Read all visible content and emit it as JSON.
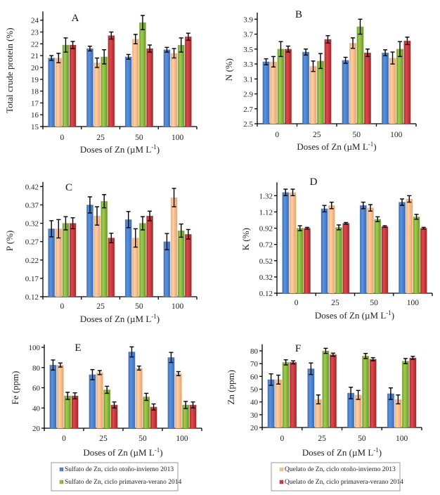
{
  "chart_data": [
    {
      "id": "A",
      "type": "bar",
      "title": "A",
      "ylabel": "Total crude protein (%)",
      "xlabel": "Doses of Zn (µM L⁻¹)",
      "categories": [
        "0",
        "25",
        "50",
        "100"
      ],
      "ylim": [
        15,
        24.5
      ],
      "yticks": [
        15,
        16,
        17,
        18,
        19,
        20,
        21,
        22,
        23,
        24
      ],
      "ytick_labels": [
        "15",
        "16",
        "17",
        "18",
        "19",
        "20",
        "21",
        "22",
        "23",
        "24"
      ],
      "series": [
        {
          "name": "Sulfato de Zn, ciclo otoño-invierno 2013",
          "values": [
            20.8,
            21.6,
            20.9,
            21.5
          ],
          "errors": [
            0.2,
            0.2,
            0.2,
            0.2
          ]
        },
        {
          "name": "Quelato de Zn, ciclo otoño-invierno 2013",
          "values": [
            20.8,
            20.4,
            22.4,
            21.2
          ],
          "errors": [
            0.4,
            0.4,
            0.4,
            0.4
          ]
        },
        {
          "name": "Sulfato de Zn, ciclo primavera-verano 2014",
          "values": [
            21.9,
            20.9,
            23.8,
            21.9
          ],
          "errors": [
            0.6,
            0.6,
            0.6,
            0.6
          ]
        },
        {
          "name": "Quelato de Zn, ciclo primavera-verano 2014",
          "values": [
            21.9,
            22.7,
            21.6,
            22.6
          ],
          "errors": [
            0.3,
            0.3,
            0.3,
            0.3
          ]
        }
      ]
    },
    {
      "id": "B",
      "type": "bar",
      "title": "B",
      "ylabel": "N (%)",
      "xlabel": "Doses of Zn (µM L⁻¹)",
      "categories": [
        "0",
        "25",
        "50",
        "100"
      ],
      "ylim": [
        2.5,
        3.95
      ],
      "yticks": [
        2.5,
        2.7,
        2.9,
        3.1,
        3.3,
        3.5,
        3.7,
        3.9
      ],
      "ytick_labels": [
        "2.5",
        "2.7",
        "2.9",
        "3.1",
        "3.3",
        "3.5",
        "3.7",
        "3.9"
      ],
      "series": [
        {
          "name": "Sulfato de Zn, ciclo otoño-invierno 2013",
          "values": [
            3.33,
            3.46,
            3.35,
            3.45
          ],
          "errors": [
            0.04,
            0.04,
            0.04,
            0.04
          ]
        },
        {
          "name": "Quelato de Zn, ciclo otoño-invierno 2013",
          "values": [
            3.33,
            3.27,
            3.58,
            3.38
          ],
          "errors": [
            0.07,
            0.07,
            0.07,
            0.08
          ]
        },
        {
          "name": "Sulfato de Zn, ciclo primavera-verano 2014",
          "values": [
            3.5,
            3.34,
            3.8,
            3.5
          ],
          "errors": [
            0.1,
            0.1,
            0.1,
            0.1
          ]
        },
        {
          "name": "Quelato de Zn, ciclo primavera-verano 2014",
          "values": [
            3.5,
            3.63,
            3.45,
            3.61
          ],
          "errors": [
            0.04,
            0.05,
            0.05,
            0.05
          ]
        }
      ]
    },
    {
      "id": "C",
      "type": "bar",
      "title": "C",
      "ylabel": "P (%)",
      "xlabel": "Doses of Zn (µM L⁻¹)",
      "categories": [
        "0",
        "25",
        "50",
        "100"
      ],
      "ylim": [
        0.12,
        0.425
      ],
      "yticks": [
        0.12,
        0.17,
        0.22,
        0.27,
        0.32,
        0.37,
        0.42
      ],
      "ytick_labels": [
        "0.12",
        "0.17",
        "0.22",
        "0.27",
        "0.32",
        "0.37",
        "0.42"
      ],
      "series": [
        {
          "name": "Sulfato de Zn, ciclo otoño-invierno 2013",
          "values": [
            0.305,
            0.37,
            0.33,
            0.27
          ],
          "errors": [
            0.022,
            0.022,
            0.022,
            0.022
          ]
        },
        {
          "name": "Quelato de Zn, ciclo otoño-invierno 2013",
          "values": [
            0.305,
            0.34,
            0.28,
            0.39
          ],
          "errors": [
            0.025,
            0.025,
            0.025,
            0.025
          ]
        },
        {
          "name": "Sulfato de Zn, ciclo primavera-verano 2014",
          "values": [
            0.32,
            0.38,
            0.32,
            0.3
          ],
          "errors": [
            0.018,
            0.018,
            0.018,
            0.018
          ]
        },
        {
          "name": "Quelato de Zn, ciclo primavera-verano 2014",
          "values": [
            0.32,
            0.28,
            0.34,
            0.29
          ],
          "errors": [
            0.015,
            0.013,
            0.013,
            0.013
          ]
        }
      ]
    },
    {
      "id": "D",
      "type": "bar",
      "title": "D",
      "ylabel": "K (%)",
      "xlabel": "Doses of Zn (µM L⁻¹)",
      "categories": [
        "0",
        "25",
        "50",
        "100"
      ],
      "ylim": [
        0.12,
        1.45
      ],
      "yticks": [
        0.12,
        0.32,
        0.52,
        0.72,
        0.92,
        1.12,
        1.32
      ],
      "ytick_labels": [
        "0.12",
        "0.32",
        "0.52",
        "0.72",
        "0.92",
        "1.12",
        "1.32"
      ],
      "series": [
        {
          "name": "Sulfato de Zn, ciclo otoño-invierno 2013",
          "values": [
            1.36,
            1.16,
            1.2,
            1.24
          ],
          "errors": [
            0.04,
            0.04,
            0.04,
            0.04
          ]
        },
        {
          "name": "Quelato de Zn, ciclo otoño-invierno 2013",
          "values": [
            1.36,
            1.2,
            1.17,
            1.28
          ],
          "errors": [
            0.04,
            0.04,
            0.04,
            0.04
          ]
        },
        {
          "name": "Sulfato de Zn, ciclo primavera-verano 2014",
          "values": [
            0.92,
            0.93,
            1.03,
            1.06
          ],
          "errors": [
            0.03,
            0.03,
            0.03,
            0.03
          ]
        },
        {
          "name": "Quelato de Zn, ciclo primavera-verano 2014",
          "values": [
            0.92,
            0.98,
            0.94,
            0.92
          ],
          "errors": [
            0.01,
            0.01,
            0.01,
            0.01
          ]
        }
      ]
    },
    {
      "id": "E",
      "type": "bar",
      "title": "E",
      "ylabel": "Fe (ppm)",
      "xlabel": "Doses of Zn (µM L⁻¹)",
      "categories": [
        "0",
        "25",
        "50",
        "100"
      ],
      "ylim": [
        20,
        100
      ],
      "yticks": [
        20,
        40,
        60,
        80,
        100
      ],
      "ytick_labels": [
        "20",
        "40",
        "60",
        "80",
        "100"
      ],
      "series": [
        {
          "name": "Sulfato de Zn, ciclo otoño-invierno 2013",
          "values": [
            82.5,
            73,
            95.5,
            90
          ],
          "errors": [
            5,
            5,
            5,
            5
          ]
        },
        {
          "name": "Quelato de Zn, ciclo otoño-invierno 2013",
          "values": [
            82.5,
            75,
            79.5,
            74
          ],
          "errors": [
            2,
            2,
            2,
            2
          ]
        },
        {
          "name": "Sulfato de Zn, ciclo primavera-verano 2014",
          "values": [
            52,
            58,
            51,
            43
          ],
          "errors": [
            3.5,
            3.5,
            3.5,
            3.5
          ]
        },
        {
          "name": "Quelato de Zn, ciclo primavera-verano 2014",
          "values": [
            52,
            43,
            41,
            43
          ],
          "errors": [
            3,
            3,
            3,
            3
          ]
        }
      ]
    },
    {
      "id": "F",
      "type": "bar",
      "title": "F",
      "ylabel": "Zn (ppm)",
      "xlabel": "Doses of Zn (µM L⁻¹)",
      "categories": [
        "0",
        "25",
        "50",
        "100"
      ],
      "ylim": [
        20,
        83
      ],
      "yticks": [
        20,
        30,
        40,
        50,
        60,
        70,
        80
      ],
      "ytick_labels": [
        "20",
        "30",
        "40",
        "50",
        "60",
        "70",
        "80"
      ],
      "series": [
        {
          "name": "Sulfato de Zn, ciclo otoño-invierno 2013",
          "values": [
            57.5,
            66,
            47,
            46.5
          ],
          "errors": [
            4.5,
            4.5,
            4.5,
            4.5
          ]
        },
        {
          "name": "Quelato de Zn, ciclo otoño-invierno 2013",
          "values": [
            57.5,
            42,
            45.5,
            42
          ],
          "errors": [
            3.5,
            3.5,
            3.5,
            3.5
          ]
        },
        {
          "name": "Sulfato de Zn, ciclo primavera-verano 2014",
          "values": [
            71,
            80,
            76,
            72
          ],
          "errors": [
            2,
            2,
            2,
            2
          ]
        },
        {
          "name": "Quelato de Zn, ciclo primavera-verano 2014",
          "values": [
            71,
            77,
            73.5,
            74.5
          ],
          "errors": [
            1.2,
            1.2,
            1.2,
            1.2
          ]
        }
      ]
    }
  ],
  "series_colors": [
    "#4a7fcc",
    "#f9c08f",
    "#8ab83e",
    "#c7393c"
  ],
  "legends": [
    {
      "panel": "E",
      "entries": [
        {
          "series_index": 0,
          "label": "Sulfato de Zn, ciclo otoño-invierno 2013"
        },
        {
          "series_index": 2,
          "label": "Sulfato de Zn, ciclo primavera-verano 2014"
        }
      ]
    },
    {
      "panel": "F",
      "entries": [
        {
          "series_index": 1,
          "label": "Quelato de Zn, ciclo otoño-invierno 2013"
        },
        {
          "series_index": 3,
          "label": "Quelato de Zn, ciclo primavera-verano 2014"
        }
      ]
    }
  ]
}
